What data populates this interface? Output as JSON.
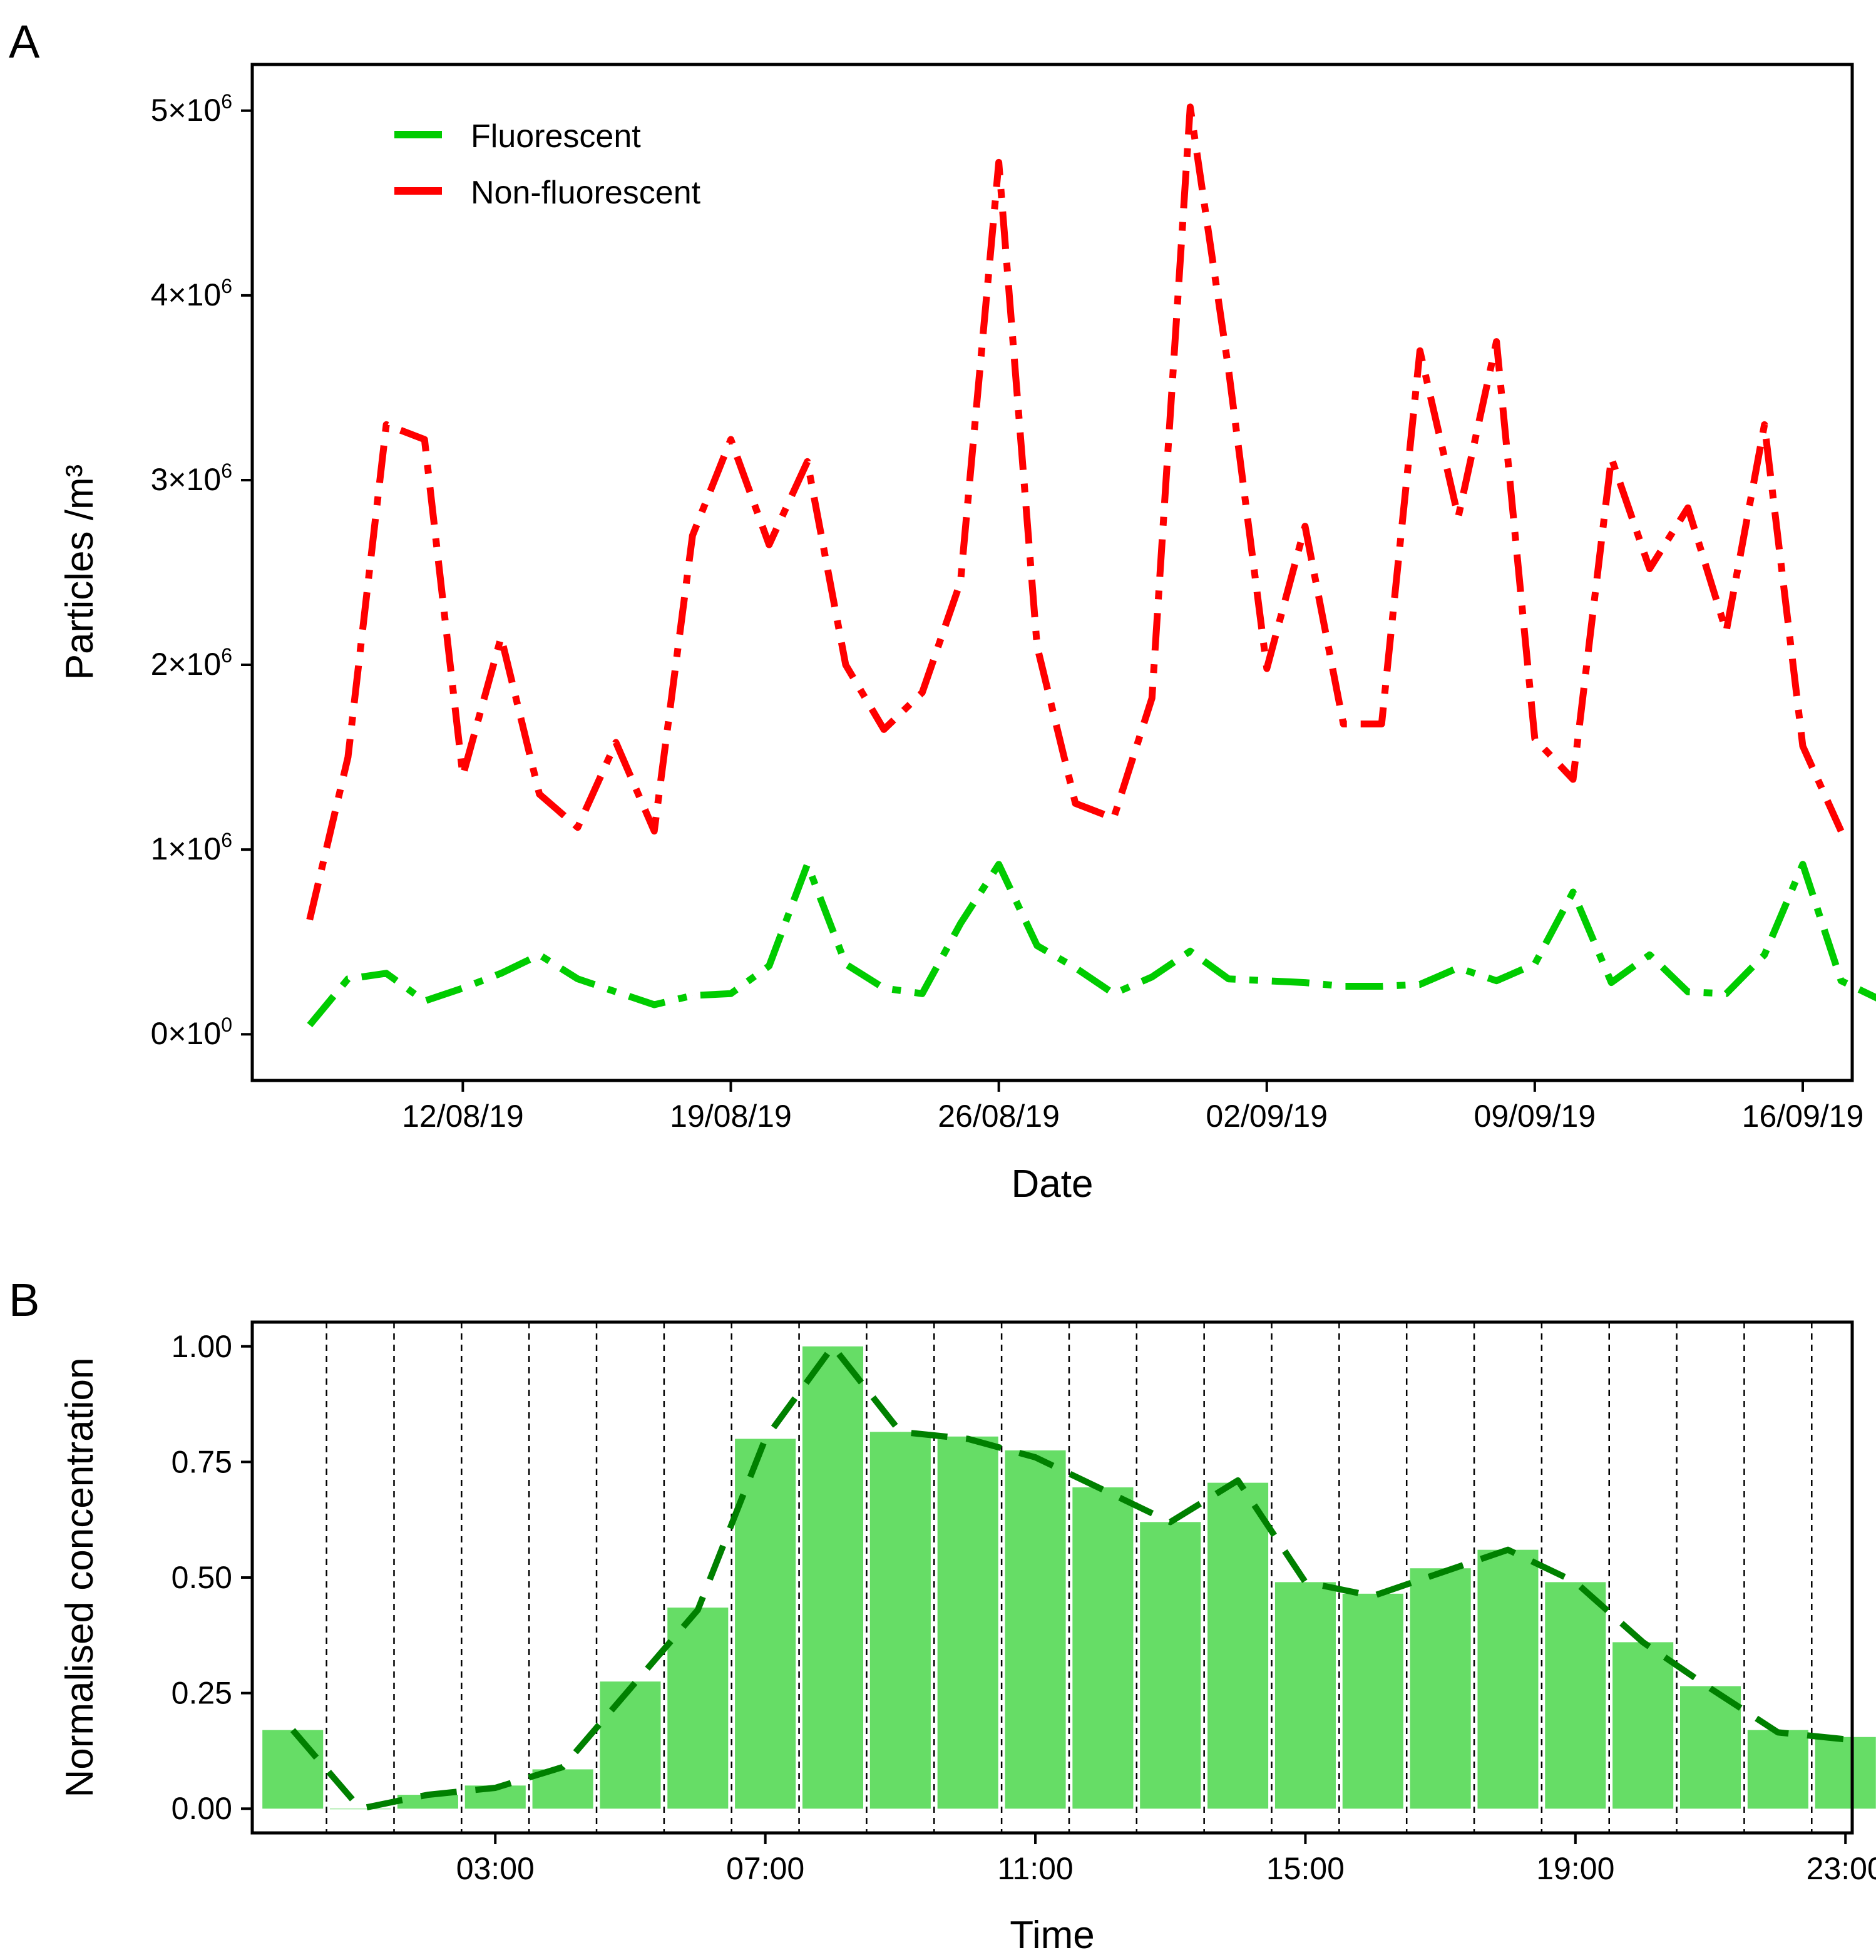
{
  "colors": {
    "fluorescent": "#00cc00",
    "non_fluorescent": "#ff0000",
    "bars": "#66dd66",
    "diurnal_line": "#008000",
    "axis": "#000000",
    "gridline": "#000000"
  },
  "chart_data": [
    {
      "panel": "A",
      "type": "line",
      "xlabel": "Date",
      "ylabel": "Particles /m³",
      "ylim": [
        -250000,
        5250000
      ],
      "x_unit": "date",
      "grid": false,
      "legend_position": "top-left",
      "x_ticks": [
        {
          "date": "2019-08-12",
          "label": "12/08/19"
        },
        {
          "date": "2019-08-19",
          "label": "19/08/19"
        },
        {
          "date": "2019-08-26",
          "label": "26/08/19"
        },
        {
          "date": "2019-09-02",
          "label": "02/09/19"
        },
        {
          "date": "2019-09-09",
          "label": "09/09/19"
        },
        {
          "date": "2019-09-16",
          "label": "16/09/19"
        }
      ],
      "y_ticks": [
        {
          "value": 0,
          "mantissa": "0",
          "exp": "0"
        },
        {
          "value": 1000000,
          "mantissa": "1",
          "exp": "6"
        },
        {
          "value": 2000000,
          "mantissa": "2",
          "exp": "6"
        },
        {
          "value": 3000000,
          "mantissa": "3",
          "exp": "6"
        },
        {
          "value": 4000000,
          "mantissa": "4",
          "exp": "6"
        },
        {
          "value": 5000000,
          "mantissa": "5",
          "exp": "6"
        }
      ],
      "x_range": [
        "2019-08-06T12:00",
        "2019-09-17T07:00"
      ],
      "series": [
        {
          "name": "Fluorescent",
          "color": "#00cc00",
          "dash": "dashdot",
          "points": [
            [
              "2019-08-08",
              50000
            ],
            [
              "2019-08-09",
              300000
            ],
            [
              "2019-08-10",
              330000
            ],
            [
              "2019-08-11",
              180000
            ],
            [
              "2019-08-12",
              250000
            ],
            [
              "2019-08-13",
              330000
            ],
            [
              "2019-08-14",
              430000
            ],
            [
              "2019-08-15",
              300000
            ],
            [
              "2019-08-16",
              230000
            ],
            [
              "2019-08-17",
              160000
            ],
            [
              "2019-08-18",
              210000
            ],
            [
              "2019-08-19",
              220000
            ],
            [
              "2019-08-20",
              370000
            ],
            [
              "2019-08-21",
              920000
            ],
            [
              "2019-08-22",
              380000
            ],
            [
              "2019-08-23",
              250000
            ],
            [
              "2019-08-24",
              220000
            ],
            [
              "2019-08-25",
              600000
            ],
            [
              "2019-08-26",
              920000
            ],
            [
              "2019-08-27",
              480000
            ],
            [
              "2019-08-28",
              360000
            ],
            [
              "2019-08-29",
              220000
            ],
            [
              "2019-08-30",
              310000
            ],
            [
              "2019-08-31",
              450000
            ],
            [
              "2019-09-01",
              300000
            ],
            [
              "2019-09-02",
              290000
            ],
            [
              "2019-09-03",
              280000
            ],
            [
              "2019-09-04",
              260000
            ],
            [
              "2019-09-05",
              260000
            ],
            [
              "2019-09-06",
              270000
            ],
            [
              "2019-09-07",
              360000
            ],
            [
              "2019-09-08",
              290000
            ],
            [
              "2019-09-09",
              380000
            ],
            [
              "2019-09-10",
              770000
            ],
            [
              "2019-09-11",
              280000
            ],
            [
              "2019-09-12",
              430000
            ],
            [
              "2019-09-13",
              230000
            ],
            [
              "2019-09-14",
              220000
            ],
            [
              "2019-09-15",
              430000
            ],
            [
              "2019-09-16",
              920000
            ],
            [
              "2019-09-17",
              290000
            ],
            [
              "2019-09-18",
              190000
            ]
          ]
        },
        {
          "name": "Non-fluorescent",
          "color": "#ff0000",
          "dash": "dashdot",
          "points": [
            [
              "2019-08-08",
              620000
            ],
            [
              "2019-08-09",
              1500000
            ],
            [
              "2019-08-10",
              3300000
            ],
            [
              "2019-08-11",
              3220000
            ],
            [
              "2019-08-12",
              1400000
            ],
            [
              "2019-08-13",
              2150000
            ],
            [
              "2019-08-14",
              1300000
            ],
            [
              "2019-08-15",
              1120000
            ],
            [
              "2019-08-16",
              1580000
            ],
            [
              "2019-08-17",
              1100000
            ],
            [
              "2019-08-18",
              2700000
            ],
            [
              "2019-08-19",
              3220000
            ],
            [
              "2019-08-20",
              2650000
            ],
            [
              "2019-08-21",
              3100000
            ],
            [
              "2019-08-22",
              2000000
            ],
            [
              "2019-08-23",
              1650000
            ],
            [
              "2019-08-24",
              1850000
            ],
            [
              "2019-08-25",
              2450000
            ],
            [
              "2019-08-26",
              4720000
            ],
            [
              "2019-08-27",
              2100000
            ],
            [
              "2019-08-28",
              1250000
            ],
            [
              "2019-08-29",
              1170000
            ],
            [
              "2019-08-30",
              1820000
            ],
            [
              "2019-08-31",
              5020000
            ],
            [
              "2019-09-01",
              3600000
            ],
            [
              "2019-09-02",
              1980000
            ],
            [
              "2019-09-03",
              2750000
            ],
            [
              "2019-09-04",
              1680000
            ],
            [
              "2019-09-05",
              1680000
            ],
            [
              "2019-09-06",
              3700000
            ],
            [
              "2019-09-07",
              2800000
            ],
            [
              "2019-09-08",
              3750000
            ],
            [
              "2019-09-09",
              1600000
            ],
            [
              "2019-09-10",
              1380000
            ],
            [
              "2019-09-11",
              3120000
            ],
            [
              "2019-09-12",
              2520000
            ],
            [
              "2019-09-13",
              2850000
            ],
            [
              "2019-09-14",
              2180000
            ],
            [
              "2019-09-15",
              3300000
            ],
            [
              "2019-09-16",
              1560000
            ],
            [
              "2019-09-17",
              1100000
            ]
          ]
        }
      ]
    },
    {
      "panel": "B",
      "type": "bar",
      "xlabel": "Time",
      "ylabel": "Normalised concentration",
      "ylim": [
        -0.0525,
        1.0525
      ],
      "xlim": [
        -0.6,
        23.1
      ],
      "grid": "dashed vertical lines at hour boundaries",
      "y_ticks": [
        0.0,
        0.25,
        0.5,
        0.75,
        1.0
      ],
      "y_tick_labels": [
        "0.00",
        "0.25",
        "0.50",
        "0.75",
        "1.00"
      ],
      "x_ticks": [
        3,
        7,
        11,
        15,
        19,
        23
      ],
      "x_tick_labels": [
        "03:00",
        "07:00",
        "11:00",
        "15:00",
        "19:00",
        "23:00"
      ],
      "categories": [
        "00:00",
        "01:00",
        "02:00",
        "03:00",
        "04:00",
        "05:00",
        "06:00",
        "07:00",
        "08:00",
        "09:00",
        "10:00",
        "11:00",
        "12:00",
        "13:00",
        "14:00",
        "15:00",
        "16:00",
        "17:00",
        "18:00",
        "19:00",
        "20:00",
        "21:00",
        "22:00",
        "23:00"
      ],
      "values": [
        0.17,
        0.0,
        0.03,
        0.05,
        0.085,
        0.275,
        0.435,
        0.8,
        1.0,
        0.815,
        0.805,
        0.775,
        0.695,
        0.62,
        0.705,
        0.49,
        0.465,
        0.52,
        0.56,
        0.49,
        0.36,
        0.265,
        0.17,
        0.155
      ],
      "line_values": [
        0.17,
        0.0,
        0.03,
        0.045,
        0.09,
        0.26,
        0.43,
        0.8,
        1.0,
        0.815,
        0.8,
        0.76,
        0.69,
        0.62,
        0.71,
        0.49,
        0.46,
        0.51,
        0.56,
        0.49,
        0.36,
        0.26,
        0.165,
        0.15
      ]
    }
  ]
}
